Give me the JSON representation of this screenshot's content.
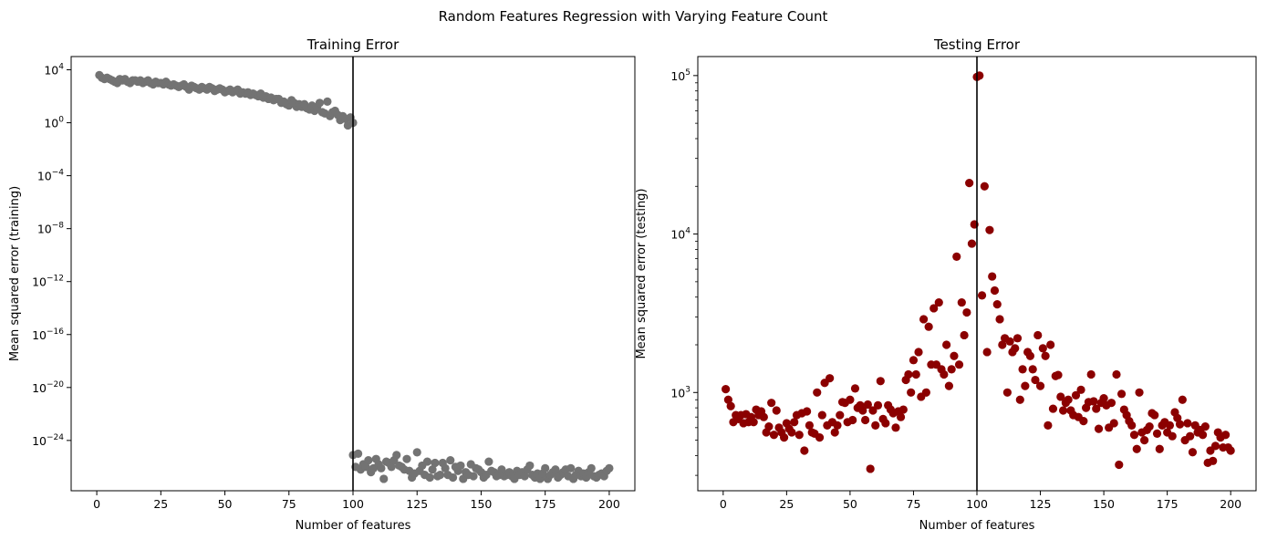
{
  "figure": {
    "suptitle": "Random Features Regression with Varying Feature Count"
  },
  "chart_data": [
    {
      "type": "scatter",
      "title": "Training Error",
      "xlabel": "Number of features",
      "ylabel": "Mean squared error (training)",
      "yscale": "log",
      "xlim": [
        -10,
        210
      ],
      "ylim_exponent": [
        -27.8,
        5.0
      ],
      "xticks": [
        0,
        25,
        50,
        75,
        100,
        125,
        150,
        175,
        200
      ],
      "yticks_exponent": [
        4,
        0,
        -4,
        -8,
        -12,
        -16,
        -20,
        -24
      ],
      "vline_x": 100,
      "marker_color": "#737373",
      "series": [
        {
          "description": "underparameterized (features 1-100), log10 MSE",
          "x": [
            1,
            2,
            3,
            4,
            5,
            6,
            7,
            8,
            9,
            10,
            11,
            12,
            13,
            14,
            15,
            16,
            17,
            18,
            19,
            20,
            21,
            22,
            23,
            24,
            25,
            26,
            27,
            28,
            29,
            30,
            31,
            32,
            33,
            34,
            35,
            36,
            37,
            38,
            39,
            40,
            41,
            42,
            43,
            44,
            45,
            46,
            47,
            48,
            49,
            50,
            51,
            52,
            53,
            54,
            55,
            56,
            57,
            58,
            59,
            60,
            61,
            62,
            63,
            64,
            65,
            66,
            67,
            68,
            69,
            70,
            71,
            72,
            73,
            74,
            75,
            76,
            77,
            78,
            79,
            80,
            81,
            82,
            83,
            84,
            85,
            86,
            87,
            88,
            89,
            90,
            91,
            92,
            93,
            94,
            95,
            96,
            97,
            98,
            99,
            100
          ],
          "log10_y": [
            3.6,
            3.4,
            3.3,
            3.4,
            3.3,
            3.2,
            3.1,
            3.0,
            3.3,
            3.2,
            3.3,
            3.1,
            3.0,
            3.2,
            3.2,
            3.1,
            3.2,
            3.0,
            3.1,
            3.2,
            3.0,
            2.9,
            3.1,
            3.0,
            3.0,
            2.9,
            3.1,
            2.9,
            2.8,
            2.9,
            2.8,
            2.7,
            2.8,
            2.9,
            2.7,
            2.5,
            2.8,
            2.7,
            2.6,
            2.5,
            2.7,
            2.6,
            2.5,
            2.7,
            2.6,
            2.4,
            2.5,
            2.6,
            2.5,
            2.3,
            2.4,
            2.5,
            2.3,
            2.4,
            2.5,
            2.2,
            2.3,
            2.2,
            2.3,
            2.1,
            2.2,
            2.1,
            2.0,
            2.2,
            1.9,
            2.0,
            1.8,
            1.9,
            1.7,
            1.8,
            1.8,
            1.5,
            1.6,
            1.4,
            1.3,
            1.7,
            1.5,
            1.2,
            1.4,
            1.2,
            1.4,
            1.1,
            1.0,
            1.3,
            0.9,
            1.2,
            1.5,
            0.8,
            0.7,
            1.6,
            0.5,
            0.8,
            0.9,
            0.6,
            0.2,
            0.5,
            0.3,
            -0.2,
            0.4,
            0.0
          ]
        },
        {
          "description": "overparameterized (features 100-200), log10 MSE",
          "x": [
            100,
            101,
            102,
            103,
            104,
            105,
            106,
            107,
            108,
            109,
            110,
            111,
            112,
            113,
            114,
            115,
            116,
            117,
            118,
            119,
            120,
            121,
            122,
            123,
            124,
            125,
            126,
            127,
            128,
            129,
            130,
            131,
            132,
            133,
            134,
            135,
            136,
            137,
            138,
            139,
            140,
            141,
            142,
            143,
            144,
            145,
            146,
            147,
            148,
            149,
            150,
            151,
            152,
            153,
            154,
            155,
            156,
            157,
            158,
            159,
            160,
            161,
            162,
            163,
            164,
            165,
            166,
            167,
            168,
            169,
            170,
            171,
            172,
            173,
            174,
            175,
            176,
            177,
            178,
            179,
            180,
            181,
            182,
            183,
            184,
            185,
            186,
            187,
            188,
            189,
            190,
            191,
            192,
            193,
            194,
            195,
            196,
            197,
            198,
            199,
            200
          ],
          "log10_y": [
            -25.1,
            -26.0,
            -25.0,
            -26.2,
            -25.8,
            -26.0,
            -25.5,
            -26.4,
            -26.1,
            -25.4,
            -25.8,
            -26.1,
            -26.9,
            -25.6,
            -25.7,
            -26.0,
            -25.5,
            -25.1,
            -25.9,
            -26.0,
            -26.2,
            -25.4,
            -26.3,
            -26.8,
            -26.5,
            -24.9,
            -26.3,
            -25.9,
            -26.6,
            -25.6,
            -26.8,
            -26.2,
            -25.7,
            -26.7,
            -26.6,
            -25.7,
            -26.1,
            -26.6,
            -25.5,
            -26.8,
            -26.0,
            -26.3,
            -25.9,
            -26.9,
            -26.4,
            -26.6,
            -25.8,
            -26.7,
            -26.1,
            -26.2,
            -26.4,
            -26.8,
            -26.6,
            -25.6,
            -26.3,
            -26.4,
            -26.7,
            -26.6,
            -26.2,
            -26.7,
            -26.6,
            -26.4,
            -26.7,
            -26.9,
            -26.3,
            -26.6,
            -26.4,
            -26.7,
            -26.2,
            -25.9,
            -26.6,
            -26.8,
            -26.5,
            -26.9,
            -26.5,
            -26.1,
            -26.9,
            -26.6,
            -26.4,
            -26.2,
            -26.8,
            -26.6,
            -26.4,
            -26.2,
            -26.7,
            -26.1,
            -26.9,
            -26.6,
            -26.3,
            -26.7,
            -26.5,
            -26.8,
            -26.4,
            -26.1,
            -26.7,
            -26.8,
            -26.6,
            -26.5,
            -26.7,
            -26.3,
            -26.1
          ]
        }
      ]
    },
    {
      "type": "scatter",
      "title": "Testing Error",
      "xlabel": "Number of features",
      "ylabel": "Mean squared error (testing)",
      "yscale": "log",
      "xlim": [
        -10,
        210
      ],
      "ylim_log10": [
        2.38,
        5.12
      ],
      "xticks": [
        0,
        25,
        50,
        75,
        100,
        125,
        150,
        175,
        200
      ],
      "yticks_exponent": [
        3,
        4,
        5
      ],
      "vline_x": 100,
      "marker_color": "#8b0000",
      "series": [
        {
          "description": "test MSE per feature count",
          "x": [
            1,
            2,
            3,
            4,
            5,
            6,
            7,
            8,
            9,
            10,
            11,
            12,
            13,
            14,
            15,
            16,
            17,
            18,
            19,
            20,
            21,
            22,
            23,
            24,
            25,
            26,
            27,
            28,
            29,
            30,
            31,
            32,
            33,
            34,
            35,
            36,
            37,
            38,
            39,
            40,
            41,
            42,
            43,
            44,
            45,
            46,
            47,
            48,
            49,
            50,
            51,
            52,
            53,
            54,
            55,
            56,
            57,
            58,
            59,
            60,
            61,
            62,
            63,
            64,
            65,
            66,
            67,
            68,
            69,
            70,
            71,
            72,
            73,
            74,
            75,
            76,
            77,
            78,
            79,
            80,
            81,
            82,
            83,
            84,
            85,
            86,
            87,
            88,
            89,
            90,
            91,
            92,
            93,
            94,
            95,
            96,
            97,
            98,
            99,
            100,
            101,
            102,
            103,
            104,
            105,
            106,
            107,
            108,
            109,
            110,
            111,
            112,
            113,
            114,
            115,
            116,
            117,
            118,
            119,
            120,
            121,
            122,
            123,
            124,
            125,
            126,
            127,
            128,
            129,
            130,
            131,
            132,
            133,
            134,
            135,
            136,
            137,
            138,
            139,
            140,
            141,
            142,
            143,
            144,
            145,
            146,
            147,
            148,
            149,
            150,
            151,
            152,
            153,
            154,
            155,
            156,
            157,
            158,
            159,
            160,
            161,
            162,
            163,
            164,
            165,
            166,
            167,
            168,
            169,
            170,
            171,
            172,
            173,
            174,
            175,
            176,
            177,
            178,
            179,
            180,
            181,
            182,
            183,
            184,
            185,
            186,
            187,
            188,
            189,
            190,
            191,
            192,
            193,
            194,
            195,
            196,
            197,
            198,
            199,
            200
          ],
          "y": [
            1050,
            900,
            820,
            650,
            720,
            680,
            720,
            640,
            730,
            650,
            700,
            650,
            780,
            720,
            760,
            700,
            560,
            610,
            860,
            540,
            770,
            600,
            560,
            520,
            640,
            590,
            560,
            650,
            720,
            540,
            740,
            430,
            760,
            620,
            560,
            550,
            1000,
            520,
            720,
            1150,
            620,
            1230,
            650,
            560,
            620,
            720,
            870,
            860,
            650,
            900,
            670,
            1060,
            800,
            830,
            770,
            670,
            840,
            330,
            770,
            620,
            830,
            1180,
            680,
            640,
            830,
            780,
            740,
            600,
            760,
            700,
            780,
            1200,
            1300,
            1000,
            1600,
            1300,
            1800,
            940,
            2900,
            1000,
            2600,
            1500,
            3400,
            1500,
            3700,
            1400,
            1300,
            2000,
            1100,
            1400,
            1700,
            7200,
            1500,
            3700,
            2300,
            3200,
            21000,
            8700,
            11500,
            98000,
            100000,
            4100,
            20000,
            1800,
            10600,
            5400,
            4400,
            3600,
            2900,
            2000,
            2200,
            1000,
            2100,
            1800,
            1900,
            2200,
            900,
            1400,
            1100,
            1800,
            1700,
            1400,
            1200,
            2300,
            1100,
            1900,
            1700,
            620,
            2000,
            790,
            1270,
            1290,
            940,
            770,
            860,
            900,
            770,
            720,
            960,
            700,
            1040,
            660,
            800,
            870,
            1300,
            880,
            790,
            590,
            860,
            920,
            830,
            600,
            860,
            640,
            1300,
            350,
            980,
            780,
            720,
            660,
            620,
            540,
            440,
            1000,
            560,
            500,
            580,
            610,
            740,
            720,
            550,
            440,
            620,
            650,
            560,
            620,
            530,
            750,
            690,
            630,
            900,
            500,
            640,
            530,
            420,
            620,
            560,
            580,
            540,
            610,
            360,
            430,
            370,
            460,
            560,
            520,
            450,
            540,
            450,
            430
          ]
        }
      ]
    }
  ]
}
